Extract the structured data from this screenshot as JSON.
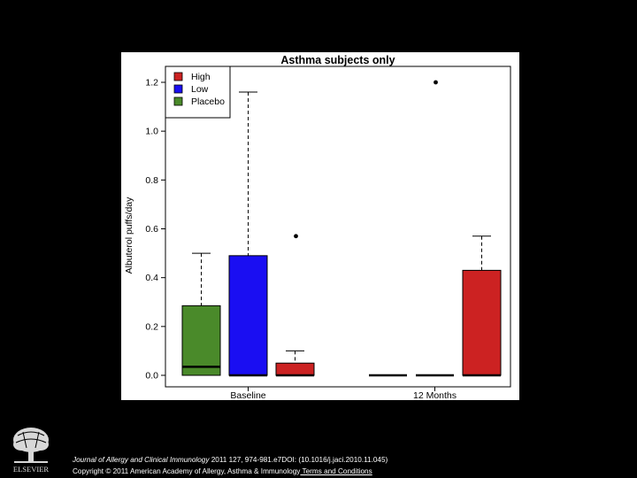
{
  "chart_data": {
    "type": "box",
    "title": "Asthma subjects only",
    "xlabel": "",
    "ylabel": "Albuterol puffs/day",
    "ylim": [
      0,
      1.2
    ],
    "yticks": [
      "0.0",
      "0.2",
      "0.4",
      "0.6",
      "0.8",
      "1.0",
      "1.2"
    ],
    "categories": [
      "Baseline",
      "12 Months"
    ],
    "legend": [
      {
        "name": "High",
        "color": "#cc2222"
      },
      {
        "name": "Low",
        "color": "#1a0ef2"
      },
      {
        "name": "Placebo",
        "color": "#4a8a2a"
      }
    ],
    "legend_position": "top-left",
    "boxes": [
      {
        "group": "Baseline",
        "series": "Placebo",
        "color": "#4a8a2a",
        "min": 0,
        "q1": 0,
        "median": 0.035,
        "q3": 0.285,
        "max": 0.5,
        "outliers": []
      },
      {
        "group": "Baseline",
        "series": "Low",
        "color": "#1a0ef2",
        "min": 0,
        "q1": 0,
        "median": 0,
        "q3": 0.49,
        "max": 1.16,
        "outliers": []
      },
      {
        "group": "Baseline",
        "series": "High",
        "color": "#cc2222",
        "min": 0,
        "q1": 0,
        "median": 0,
        "q3": 0.05,
        "max": 0.1,
        "outliers": [
          0.57
        ]
      },
      {
        "group": "12 Months",
        "series": "Placebo",
        "color": "#4a8a2a",
        "min": 0,
        "q1": 0,
        "median": 0,
        "q3": 0,
        "max": 0,
        "outliers": []
      },
      {
        "group": "12 Months",
        "series": "Low",
        "color": "#1a0ef2",
        "min": 0,
        "q1": 0,
        "median": 0,
        "q3": 0,
        "max": 0,
        "outliers": [
          1.2
        ]
      },
      {
        "group": "12 Months",
        "series": "High",
        "color": "#cc2222",
        "min": 0,
        "q1": 0,
        "median": 0,
        "q3": 0.43,
        "max": 0.57,
        "outliers": []
      }
    ]
  },
  "footer": {
    "journal": "Journal of Allergy and Clinical Immunology",
    "citation_rest": " 2011 127, 974-981.e7DOI: (10.1016/j.jaci.2010.11.045)",
    "copyright": "Copyright © 2011 American Academy of Allergy, Asthma & Immunology",
    "terms_link": " Terms and Conditions",
    "publisher": "ELSEVIER"
  }
}
